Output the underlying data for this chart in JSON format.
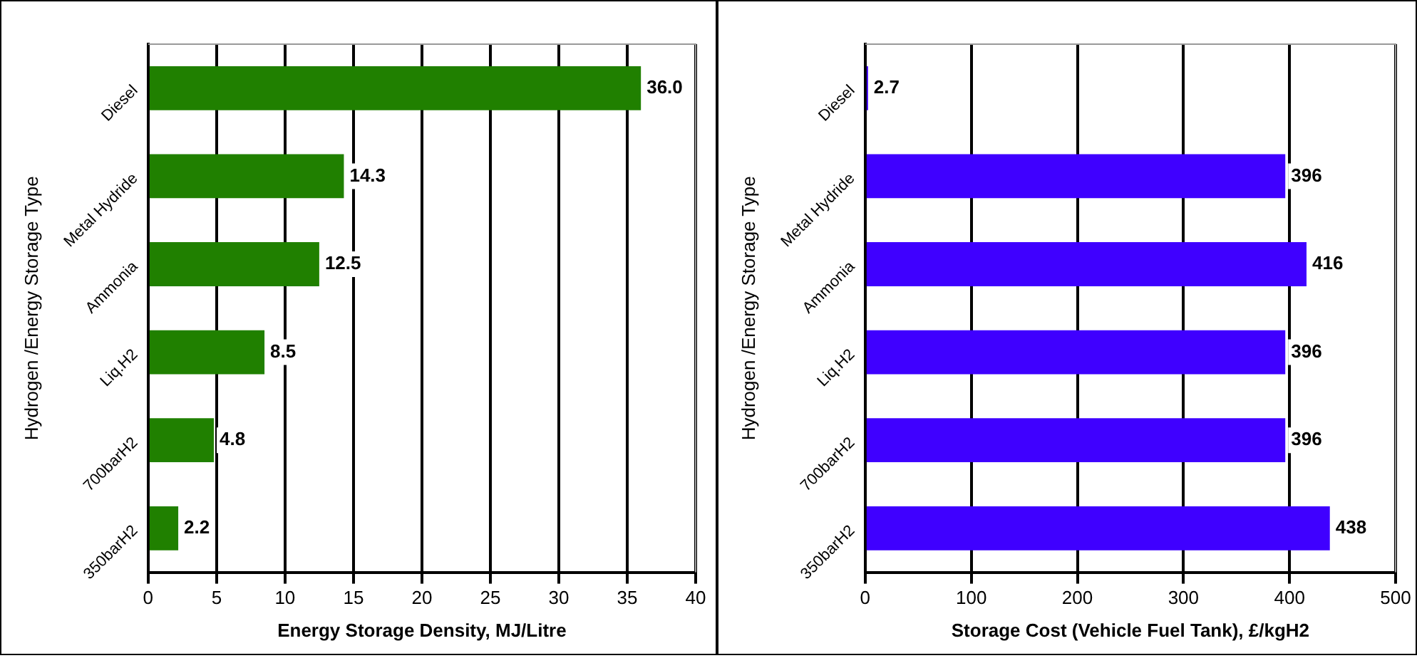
{
  "chart_data": [
    {
      "type": "bar",
      "orientation": "horizontal",
      "categories": [
        "Diesel",
        "Metal Hydride",
        "Ammonia",
        "Liq.H2",
        "700barH2",
        "350barH2"
      ],
      "values": [
        36.0,
        14.3,
        12.5,
        8.5,
        4.8,
        2.2
      ],
      "value_labels": [
        "36.0",
        "14.3",
        "12.5",
        "8.5",
        "4.8",
        "2.2"
      ],
      "color": "#208000",
      "xlabel": "Energy Storage Density, MJ/Litre",
      "ylabel": "Hydrogen /Energy Storage Type",
      "xlim": [
        0,
        40
      ],
      "xticks": [
        0,
        5,
        10,
        15,
        20,
        25,
        30,
        35,
        40
      ],
      "grid": "x",
      "legend": false
    },
    {
      "type": "bar",
      "orientation": "horizontal",
      "categories": [
        "Diesel",
        "Metal Hydride",
        "Ammonia",
        "Liq.H2",
        "700barH2",
        "350barH2"
      ],
      "values": [
        2.7,
        396,
        416,
        396,
        396,
        438
      ],
      "value_labels": [
        "2.7",
        "396",
        "416",
        "396",
        "396",
        "438"
      ],
      "color": "#3f00ff",
      "xlabel": "Storage Cost (Vehicle Fuel Tank), £/kgH2",
      "ylabel": "Hydrogen /Energy Storage Type",
      "xlim": [
        0,
        500
      ],
      "xticks": [
        0,
        100,
        200,
        300,
        400,
        500
      ],
      "grid": "x",
      "legend": false
    }
  ]
}
